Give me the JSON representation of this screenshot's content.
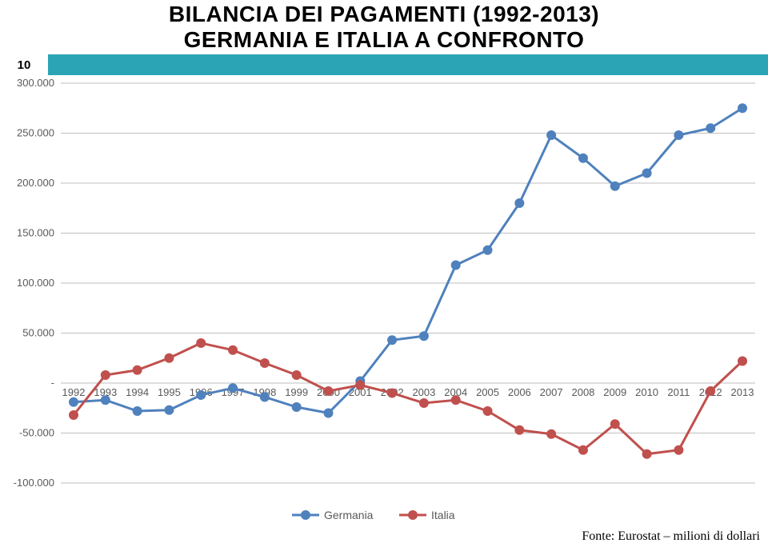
{
  "title": {
    "line1": "BILANCIA DEI PAGAMENTI (1992-2013)",
    "line2": "GERMANIA E ITALIA A CONFRONTO"
  },
  "page_number": "10",
  "source_text": "Fonte: Eurostat – milioni di dollari",
  "chart": {
    "type": "line",
    "background_color": "#ffffff",
    "grid_color": "#bfbfbf",
    "axis_fontsize": 13,
    "legend_fontsize": 14,
    "marker_size": 6,
    "line_width": 3,
    "y_axis": {
      "min": -100000,
      "max": 300000,
      "tick_step": 50000,
      "tick_labels": [
        "-100.000",
        "-50.000",
        " - ",
        "50.000",
        "100.000",
        "150.000",
        "200.000",
        "250.000",
        "300.000"
      ]
    },
    "x_axis": {
      "labels": [
        "1992",
        "1993",
        "1994",
        "1995",
        "1996",
        "1997",
        "1998",
        "1999",
        "2000",
        "2001",
        "2002",
        "2003",
        "2004",
        "2005",
        "2006",
        "2007",
        "2008",
        "2009",
        "2010",
        "2011",
        "2012",
        "2013"
      ]
    },
    "series": [
      {
        "name": "Germania",
        "color": "#4f81bd",
        "values": [
          -19000,
          -17000,
          -28000,
          -27000,
          -12000,
          -5000,
          -14000,
          -24000,
          -30000,
          2000,
          43000,
          47000,
          118000,
          133000,
          180000,
          248000,
          225000,
          197000,
          210000,
          248000,
          255000,
          275000
        ]
      },
      {
        "name": "Italia",
        "color": "#c0504d",
        "values": [
          -32000,
          8000,
          13000,
          25000,
          40000,
          33000,
          20000,
          8000,
          -8000,
          -2000,
          -10000,
          -20000,
          -17000,
          -28000,
          -47000,
          -51000,
          -67000,
          -41000,
          -71000,
          -67000,
          -8000,
          22000
        ]
      }
    ]
  }
}
